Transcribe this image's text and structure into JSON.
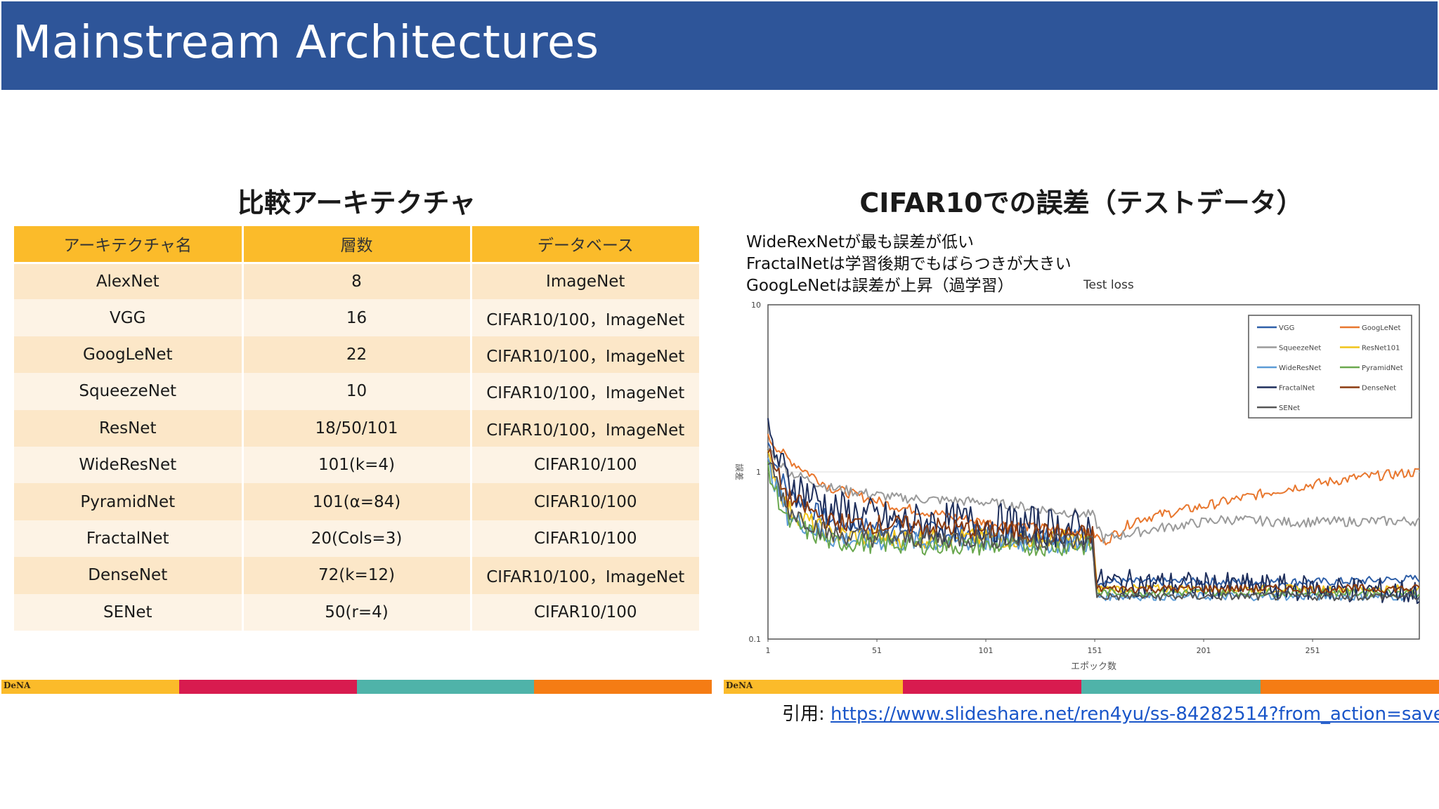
{
  "slide_title": "Mainstream Architectures",
  "table_section": {
    "heading": "比較アーキテクチャ",
    "headers": [
      "アーキテクチャ名",
      "層数",
      "データベース"
    ],
    "rows": [
      [
        "AlexNet",
        "8",
        "ImageNet"
      ],
      [
        "VGG",
        "16",
        "CIFAR10/100，ImageNet"
      ],
      [
        "GoogLeNet",
        "22",
        "CIFAR10/100，ImageNet"
      ],
      [
        "SqueezeNet",
        "10",
        "CIFAR10/100，ImageNet"
      ],
      [
        "ResNet",
        "18/50/101",
        "CIFAR10/100，ImageNet"
      ],
      [
        "WideResNet",
        "101(k=4)",
        "CIFAR10/100"
      ],
      [
        "PyramidNet",
        "101(α=84)",
        "CIFAR10/100"
      ],
      [
        "FractalNet",
        "20(Cols=3)",
        "CIFAR10/100"
      ],
      [
        "DenseNet",
        "72(k=12)",
        "CIFAR10/100，ImageNet"
      ],
      [
        "SENet",
        "50(r=4)",
        "CIFAR10/100"
      ]
    ],
    "logo_text": "DeNA"
  },
  "chart_section": {
    "heading": "CIFAR10での誤差（テストデータ）",
    "notes": [
      "WideRexNetが最も誤差が低い",
      "FractalNetは学習後期でもばらつきが大きい",
      "GoogLeNetは誤差が上昇（過学習）"
    ],
    "chart_label": "Test loss",
    "logo_text": "DeNA"
  },
  "chart_data": {
    "type": "line",
    "title": "Test loss",
    "xlabel": "エポック数",
    "ylabel": "誤差",
    "yscale": "log",
    "ylim": [
      0.1,
      10
    ],
    "xlim": [
      1,
      300
    ],
    "x_ticks": [
      "1",
      "51",
      "101",
      "151",
      "201",
      "251"
    ],
    "y_ticks": [
      "0.1",
      "1",
      "10"
    ],
    "legend_position": "top-right",
    "series": [
      {
        "name": "VGG",
        "color": "#2e5fa8",
        "points": [
          [
            1,
            1.5
          ],
          [
            10,
            0.75
          ],
          [
            30,
            0.5
          ],
          [
            60,
            0.45
          ],
          [
            100,
            0.43
          ],
          [
            150,
            0.42
          ],
          [
            152,
            0.22
          ],
          [
            200,
            0.22
          ],
          [
            260,
            0.22
          ],
          [
            300,
            0.23
          ]
        ]
      },
      {
        "name": "GoogLeNet",
        "color": "#e8772e",
        "points": [
          [
            1,
            1.6
          ],
          [
            10,
            1.2
          ],
          [
            30,
            0.8
          ],
          [
            60,
            0.62
          ],
          [
            100,
            0.5
          ],
          [
            150,
            0.43
          ],
          [
            155,
            0.38
          ],
          [
            170,
            0.52
          ],
          [
            200,
            0.62
          ],
          [
            240,
            0.8
          ],
          [
            270,
            0.92
          ],
          [
            300,
            1.0
          ]
        ]
      },
      {
        "name": "SqueezeNet",
        "color": "#9a9a9a",
        "points": [
          [
            1,
            1.4
          ],
          [
            10,
            1.0
          ],
          [
            30,
            0.8
          ],
          [
            60,
            0.7
          ],
          [
            100,
            0.66
          ],
          [
            150,
            0.55
          ],
          [
            155,
            0.4
          ],
          [
            180,
            0.46
          ],
          [
            210,
            0.52
          ],
          [
            240,
            0.5
          ],
          [
            300,
            0.51
          ]
        ]
      },
      {
        "name": "ResNet101",
        "color": "#f0c419",
        "points": [
          [
            1,
            1.2
          ],
          [
            10,
            0.6
          ],
          [
            30,
            0.42
          ],
          [
            60,
            0.4
          ],
          [
            100,
            0.4
          ],
          [
            150,
            0.39
          ],
          [
            152,
            0.2
          ],
          [
            200,
            0.2
          ],
          [
            260,
            0.2
          ],
          [
            300,
            0.2
          ]
        ]
      },
      {
        "name": "WideResNet",
        "color": "#5b9bd5",
        "points": [
          [
            1,
            1.1
          ],
          [
            10,
            0.55
          ],
          [
            30,
            0.4
          ],
          [
            60,
            0.38
          ],
          [
            100,
            0.38
          ],
          [
            150,
            0.37
          ],
          [
            152,
            0.18
          ],
          [
            200,
            0.18
          ],
          [
            300,
            0.18
          ]
        ]
      },
      {
        "name": "PyramidNet",
        "color": "#6aa84f",
        "points": [
          [
            1,
            1.0
          ],
          [
            10,
            0.5
          ],
          [
            30,
            0.38
          ],
          [
            60,
            0.37
          ],
          [
            100,
            0.36
          ],
          [
            150,
            0.36
          ],
          [
            152,
            0.19
          ],
          [
            200,
            0.19
          ],
          [
            300,
            0.19
          ]
        ]
      },
      {
        "name": "FractalNet",
        "color": "#1f2f5c",
        "points": [
          [
            1,
            1.6
          ],
          [
            10,
            0.9
          ],
          [
            30,
            0.6
          ],
          [
            60,
            0.5
          ],
          [
            100,
            0.5
          ],
          [
            150,
            0.45
          ],
          [
            152,
            0.22
          ],
          [
            200,
            0.21
          ],
          [
            260,
            0.2
          ],
          [
            300,
            0.19
          ]
        ]
      },
      {
        "name": "DenseNet",
        "color": "#8b3a0f",
        "points": [
          [
            1,
            1.3
          ],
          [
            10,
            0.7
          ],
          [
            30,
            0.5
          ],
          [
            60,
            0.48
          ],
          [
            100,
            0.45
          ],
          [
            150,
            0.42
          ],
          [
            152,
            0.2
          ],
          [
            200,
            0.2
          ],
          [
            300,
            0.2
          ]
        ]
      },
      {
        "name": "SENet",
        "color": "#555555",
        "points": [
          [
            1,
            1.2
          ],
          [
            10,
            0.6
          ],
          [
            30,
            0.42
          ],
          [
            60,
            0.4
          ],
          [
            100,
            0.4
          ],
          [
            150,
            0.38
          ],
          [
            152,
            0.18
          ],
          [
            200,
            0.18
          ],
          [
            300,
            0.18
          ]
        ]
      }
    ]
  },
  "citation": {
    "prefix": "引用: ",
    "link_text": "https://www.slideshare.net/ren4yu/ss-84282514?from_action=save"
  },
  "colors": {
    "title_bar": "#2e5599",
    "table_header": "#fbbb2a",
    "row_odd": "#fce7c8",
    "row_even": "#fdf3e5",
    "stripe": [
      "#fbbb2a",
      "#d81b4f",
      "#4fb3a9",
      "#f57c14"
    ]
  }
}
